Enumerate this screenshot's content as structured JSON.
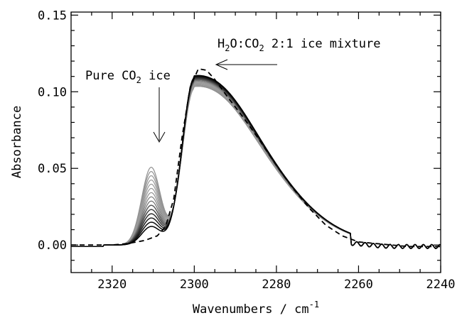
{
  "chart_data": {
    "type": "line",
    "xlabel": "Wavenumbers / cm",
    "xlabel_sup": "-1",
    "ylabel": "Absorbance",
    "xlim": [
      2330,
      2240
    ],
    "ylim": [
      -0.018,
      0.152
    ],
    "x_ticks": [
      2320,
      2300,
      2280,
      2260,
      2240
    ],
    "y_ticks": [
      0.0,
      0.05,
      0.1,
      0.15
    ],
    "x_tick_labels": [
      "2320",
      "2300",
      "2280",
      "2260",
      "2240"
    ],
    "y_tick_labels": [
      "0.00",
      "0.05",
      "0.10",
      "0.15"
    ],
    "grid": false,
    "legend": "none",
    "annotations": [
      {
        "text": "Pure CO",
        "sub": "2",
        "tail": " ice",
        "points_to": [
          2311,
          0.065
        ]
      },
      {
        "text": "H",
        "sub": "2",
        "mid": "O:CO",
        "sub2": "2",
        "tail": " 2:1 ice mixture",
        "points_to": [
          2299,
          0.116
        ]
      }
    ],
    "series_family": {
      "description_x": [
        2330,
        2320,
        2316,
        2314,
        2312,
        2310,
        2308,
        2306,
        2304,
        2302,
        2300,
        2298,
        2296,
        2292,
        2288,
        2284,
        2280,
        2276,
        2272,
        2268,
        2264,
        2260,
        2256,
        2252,
        2248,
        2244,
        2240
      ],
      "curves": [
        {
          "shoulder": 0.055,
          "peak": 0.102,
          "color": "#909090"
        },
        {
          "shoulder": 0.052,
          "peak": 0.1025,
          "color": "#939393"
        },
        {
          "shoulder": 0.049,
          "peak": 0.103,
          "color": "#969696"
        },
        {
          "shoulder": 0.046,
          "peak": 0.1035,
          "color": "#989898"
        },
        {
          "shoulder": 0.043,
          "peak": 0.104,
          "color": "#9a9a9a"
        },
        {
          "shoulder": 0.04,
          "peak": 0.1045,
          "color": "#9a9a9a"
        },
        {
          "shoulder": 0.037,
          "peak": 0.105,
          "color": "#909090"
        },
        {
          "shoulder": 0.034,
          "peak": 0.1055,
          "color": "#808080"
        },
        {
          "shoulder": 0.031,
          "peak": 0.106,
          "color": "#6e6e6e"
        },
        {
          "shoulder": 0.028,
          "peak": 0.1065,
          "color": "#5a5a5a"
        },
        {
          "shoulder": 0.025,
          "peak": 0.107,
          "color": "#454545"
        },
        {
          "shoulder": 0.022,
          "peak": 0.1075,
          "color": "#303030"
        },
        {
          "shoulder": 0.019,
          "peak": 0.108,
          "color": "#1e1e1e"
        },
        {
          "shoulder": 0.016,
          "peak": 0.1085,
          "color": "#0e0e0e"
        },
        {
          "shoulder": 0.013,
          "peak": 0.109,
          "color": "#000000"
        }
      ]
    },
    "dashed_series": {
      "x": [
        2330,
        2320,
        2316,
        2312,
        2309,
        2307,
        2305,
        2303,
        2301,
        2299,
        2297,
        2295,
        2292,
        2288,
        2284,
        2280,
        2276,
        2272,
        2268,
        2264,
        2260,
        2256,
        2252,
        2248,
        2244,
        2240
      ],
      "y": [
        0.0,
        0.0,
        0.001,
        0.003,
        0.006,
        0.012,
        0.03,
        0.07,
        0.103,
        0.115,
        0.114,
        0.108,
        0.097,
        0.083,
        0.068,
        0.052,
        0.037,
        0.024,
        0.013,
        0.006,
        0.002,
        0.001,
        0.0,
        -0.001,
        -0.001,
        -0.001
      ]
    }
  }
}
